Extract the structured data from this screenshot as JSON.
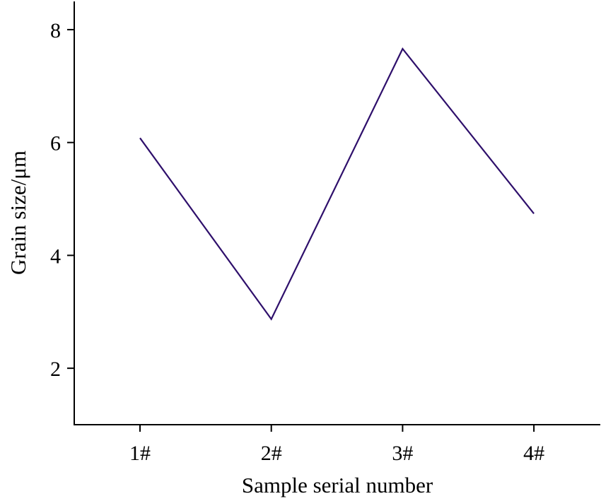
{
  "chart_data": {
    "type": "line",
    "title": "",
    "xlabel": "Sample serial number",
    "ylabel": "Grain size/μm",
    "categories": [
      "1#",
      "2#",
      "3#",
      "4#"
    ],
    "series": [
      {
        "values": [
          6.08,
          2.87,
          7.66,
          4.74
        ],
        "color": "#2e0f6b"
      }
    ],
    "ylim": [
      1.0,
      8.5
    ],
    "yticks": [
      2,
      4,
      6,
      8
    ],
    "grid": false,
    "legend": "none"
  }
}
